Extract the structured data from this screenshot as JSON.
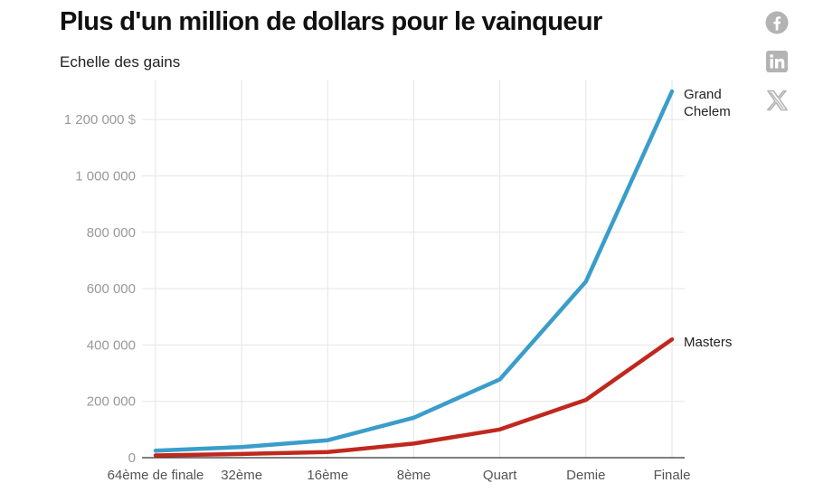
{
  "chart_data": {
    "type": "line",
    "title": "Plus d'un million de dollars pour le vainqueur",
    "subtitle": "Echelle des gains",
    "categories": [
      "64ème de finale",
      "32ème",
      "16ème",
      "8ème",
      "Quart",
      "Demie",
      "Finale"
    ],
    "series": [
      {
        "name": "Grand Chelem",
        "label_lines": [
          "Grand",
          "Chelem"
        ],
        "color": "#3a9dca",
        "values": [
          25000,
          38000,
          62000,
          142000,
          278000,
          625000,
          1300000
        ]
      },
      {
        "name": "Masters",
        "label_lines": [
          "Masters"
        ],
        "color": "#c0281e",
        "values": [
          8000,
          13000,
          20000,
          50000,
          100000,
          205000,
          420000
        ]
      }
    ],
    "ylim": [
      0,
      1300000
    ],
    "yticks": [
      0,
      200000,
      400000,
      600000,
      800000,
      1000000,
      1200000
    ],
    "ytick_labels": [
      "0",
      "200 000",
      "400 000",
      "600 000",
      "800 000",
      "1 000 000",
      "1 200 000 $"
    ],
    "grid": true
  },
  "share": {
    "facebook": "facebook-icon",
    "linkedin": "linkedin-icon",
    "x": "x-icon",
    "icon_color": "#b3b3b3"
  }
}
